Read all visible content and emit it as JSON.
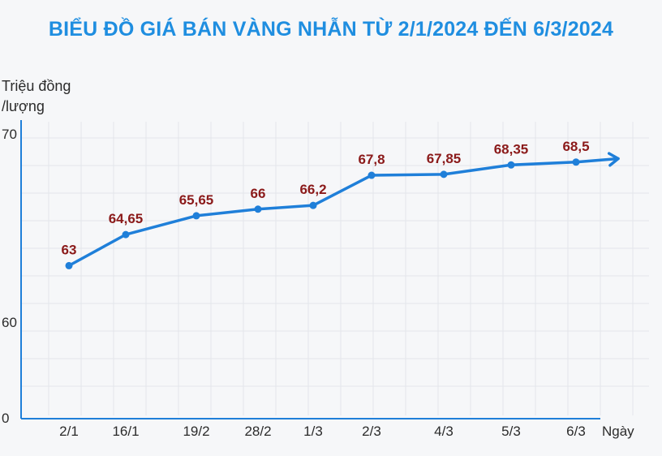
{
  "chart_data": {
    "type": "line",
    "title": "BIỂU ĐỒ GIÁ BÁN VÀNG NHẪN TỪ 2/1/2024 ĐẾN 6/3/2024",
    "ylabel_line1": "Triệu đồng",
    "ylabel_line2": "/lượng",
    "xlabel": "Ngày",
    "categories": [
      "2/1",
      "16/1",
      "19/2",
      "28/2",
      "1/3",
      "2/3",
      "4/3",
      "5/3",
      "6/3"
    ],
    "values": [
      63,
      64.65,
      65.65,
      66,
      66.2,
      67.8,
      67.85,
      68.35,
      68.5
    ],
    "value_labels": [
      "63",
      "64,65",
      "65,65",
      "66",
      "66,2",
      "67,8",
      "67,85",
      "68,35",
      "68,5"
    ],
    "y_ticks": [
      {
        "label": "0"
      },
      {
        "value": 60,
        "label": "60"
      },
      {
        "value": 70,
        "label": "70"
      }
    ],
    "line_color": "#1f7fd9",
    "label_color": "#8b1a1a",
    "title_color": "#1f8ee0",
    "grid": true,
    "axis_break": true,
    "arrow_end": true
  }
}
